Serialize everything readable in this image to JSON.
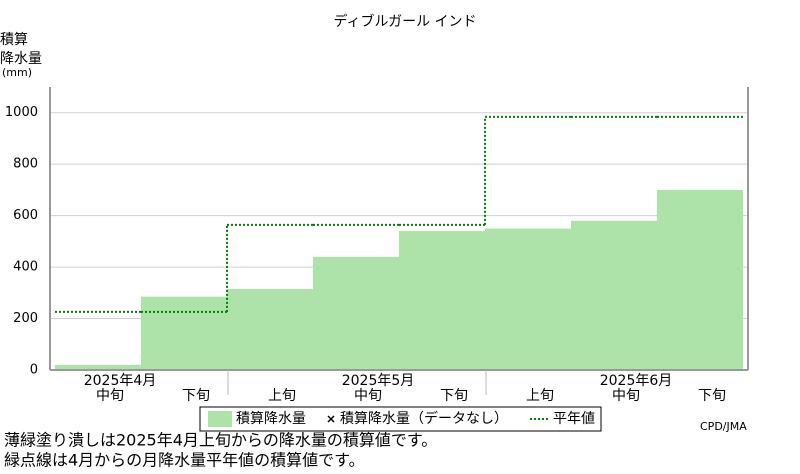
{
  "chart_data": {
    "type": "bar",
    "title": "ディブルガール インド",
    "y_label": [
      "積算",
      "降水量",
      "(mm)"
    ],
    "categories": [
      "中旬",
      "下旬",
      "上旬",
      "中旬",
      "下旬",
      "上旬",
      "中旬",
      "下旬"
    ],
    "month_labels": [
      "2025年4月",
      "2025年5月",
      "2025年6月"
    ],
    "series": [
      {
        "name": "積算降水量",
        "color": "#ade3a8",
        "values": [
          20,
          285,
          315,
          440,
          540,
          550,
          580,
          700
        ]
      },
      {
        "name": "平年値",
        "color": "#008000",
        "values": [
          226,
          226,
          564,
          564,
          564,
          984,
          984,
          984
        ]
      }
    ],
    "no_data_label": "積算降水量（データなし）",
    "ylim": [
      0,
      1100
    ],
    "yticks": [
      0,
      200,
      400,
      600,
      800,
      1000
    ],
    "grid": true,
    "credit": "CPD/JMA",
    "notes": [
      "薄緑塗り潰しは2025年4月上旬からの降水量の積算値です。",
      "緑点線は4月からの月降水量平年値の積算値です。"
    ]
  }
}
